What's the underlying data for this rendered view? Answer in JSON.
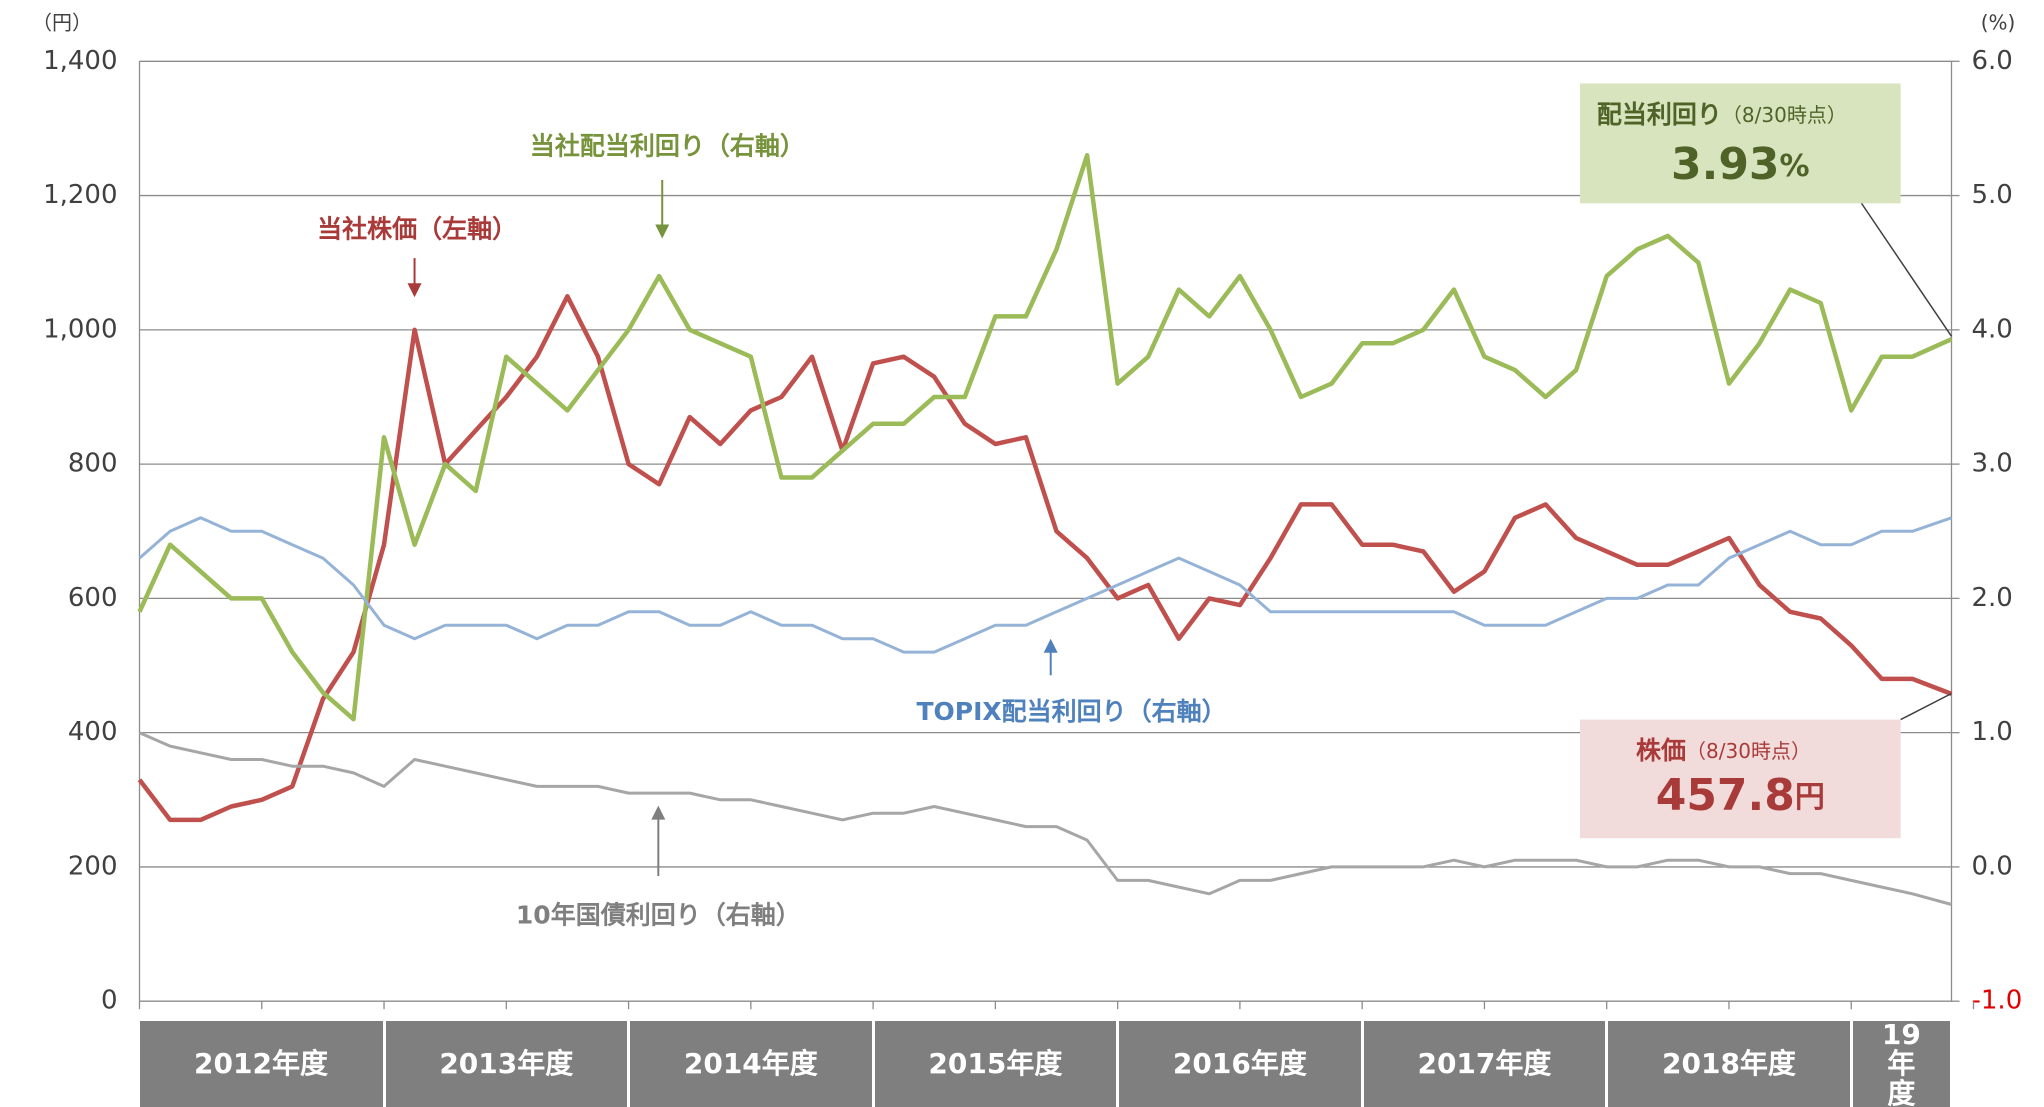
{
  "chart_data": {
    "type": "line",
    "y_unit": "（円）",
    "y2_unit": "(%)",
    "x": [
      2012,
      2012.125,
      2012.25,
      2012.375,
      2012.5,
      2012.625,
      2012.75,
      2012.875,
      2013,
      2013.125,
      2013.25,
      2013.375,
      2013.5,
      2013.625,
      2013.75,
      2013.875,
      2014,
      2014.125,
      2014.25,
      2014.375,
      2014.5,
      2014.625,
      2014.75,
      2014.875,
      2015,
      2015.125,
      2015.25,
      2015.375,
      2015.5,
      2015.625,
      2015.75,
      2015.875,
      2016,
      2016.125,
      2016.25,
      2016.375,
      2016.5,
      2016.625,
      2016.75,
      2016.875,
      2017,
      2017.125,
      2017.25,
      2017.375,
      2017.5,
      2017.625,
      2017.75,
      2017.875,
      2018,
      2018.125,
      2018.25,
      2018.375,
      2018.5,
      2018.625,
      2018.75,
      2018.875,
      2019,
      2019.125,
      2019.25,
      2019.41
    ],
    "xlim": [
      2012,
      2019.41
    ],
    "fiscal_years": [
      "2012年度",
      "2013年度",
      "2014年度",
      "2015年度",
      "2016年度",
      "2017年度",
      "2018年度",
      "19年度"
    ],
    "ylim": [
      0,
      1400
    ],
    "yticks": [
      0,
      200,
      400,
      600,
      800,
      {
        "value": 1000,
        "label": "1,000"
      },
      {
        "value": 1200,
        "label": "1,200"
      },
      {
        "value": 1400,
        "label": "1,400"
      }
    ],
    "y2lim": [
      -1,
      6
    ],
    "y2ticks": [
      {
        "value": -1,
        "label": "-1.0",
        "color": "#e00000"
      },
      {
        "value": 0,
        "label": "0.0"
      },
      {
        "value": 1,
        "label": "1.0"
      },
      {
        "value": 2,
        "label": "2.0"
      },
      {
        "value": 3,
        "label": "3.0"
      },
      {
        "value": 4,
        "label": "4.0"
      },
      {
        "value": 5,
        "label": "5.0"
      },
      {
        "value": 6,
        "label": "6.0"
      }
    ],
    "grid": true,
    "series": [
      {
        "color": "#c0504d",
        "axis": "y",
        "values": [
          330,
          270,
          270,
          290,
          300,
          320,
          450,
          520,
          680,
          1000,
          800,
          850,
          900,
          960,
          1050,
          960,
          800,
          770,
          870,
          830,
          880,
          900,
          960,
          820,
          950,
          960,
          930,
          860,
          830,
          840,
          700,
          660,
          600,
          620,
          540,
          600,
          590,
          660,
          740,
          740,
          680,
          680,
          670,
          610,
          640,
          720,
          740,
          690,
          670,
          650,
          650,
          670,
          690,
          620,
          580,
          570,
          530,
          480,
          480,
          457.8
        ]
      },
      {
        "color": "#9bbb59",
        "axis": "y2",
        "values": [
          1.9,
          2.4,
          2.2,
          2.0,
          2.0,
          1.6,
          1.3,
          1.1,
          3.2,
          2.4,
          3.0,
          2.8,
          3.8,
          3.6,
          3.4,
          3.7,
          4.0,
          4.4,
          4.0,
          3.9,
          3.8,
          2.9,
          2.9,
          3.1,
          3.3,
          3.3,
          3.5,
          3.5,
          4.1,
          4.1,
          4.6,
          5.3,
          3.6,
          3.8,
          4.3,
          4.1,
          4.4,
          4.0,
          3.5,
          3.6,
          3.9,
          3.9,
          4.0,
          4.3,
          3.8,
          3.7,
          3.5,
          3.7,
          4.4,
          4.6,
          4.7,
          4.5,
          3.6,
          3.9,
          4.3,
          4.2,
          3.4,
          3.8,
          3.8,
          3.93
        ]
      },
      {
        "color": "#95b3d7",
        "axis": "y2",
        "values": [
          2.3,
          2.5,
          2.6,
          2.5,
          2.5,
          2.4,
          2.3,
          2.1,
          1.8,
          1.7,
          1.8,
          1.8,
          1.8,
          1.7,
          1.8,
          1.8,
          1.9,
          1.9,
          1.8,
          1.8,
          1.9,
          1.8,
          1.8,
          1.7,
          1.7,
          1.6,
          1.6,
          1.7,
          1.8,
          1.8,
          1.9,
          2.0,
          2.1,
          2.2,
          2.3,
          2.2,
          2.1,
          1.9,
          1.9,
          1.9,
          1.9,
          1.9,
          1.9,
          1.9,
          1.8,
          1.8,
          1.8,
          1.9,
          2.0,
          2.0,
          2.1,
          2.1,
          2.3,
          2.4,
          2.5,
          2.4,
          2.4,
          2.5,
          2.5,
          2.6
        ]
      },
      {
        "color": "#a6a6a6",
        "axis": "y2",
        "values": [
          1.0,
          0.9,
          0.85,
          0.8,
          0.8,
          0.75,
          0.75,
          0.7,
          0.6,
          0.8,
          0.75,
          0.7,
          0.65,
          0.6,
          0.6,
          0.6,
          0.55,
          0.55,
          0.55,
          0.5,
          0.5,
          0.45,
          0.4,
          0.35,
          0.4,
          0.4,
          0.45,
          0.4,
          0.35,
          0.3,
          0.3,
          0.2,
          -0.1,
          -0.1,
          -0.15,
          -0.2,
          -0.1,
          -0.1,
          -0.05,
          0.0,
          0.0,
          0.0,
          0.0,
          0.05,
          0.0,
          0.05,
          0.05,
          0.05,
          0.0,
          0.0,
          0.05,
          0.05,
          0.0,
          0.0,
          -0.05,
          -0.05,
          -0.1,
          -0.15,
          -0.2,
          -0.28
        ]
      }
    ],
    "annotations": [
      {
        "text": "当社株価（左軸）",
        "color": "#a83b39"
      },
      {
        "text": "当社配当利回り（右軸）",
        "color": "#77933c"
      },
      {
        "text": "TOPIX配当利回り（右軸）",
        "color": "#4f81bd"
      },
      {
        "text": "10年国債利回り（右軸）",
        "color": "#7f7f7f"
      }
    ],
    "callouts": [
      {
        "title": "配当利回り",
        "note": "（8/30時点）",
        "value": "3.93",
        "unit": "%",
        "color": "#4f6228",
        "fill": "#d7e4bd"
      },
      {
        "title": "株価",
        "note": "（8/30時点）",
        "value": "457.8",
        "unit": "円",
        "color": "#a83b39",
        "fill": "#f2dcdb"
      }
    ]
  }
}
